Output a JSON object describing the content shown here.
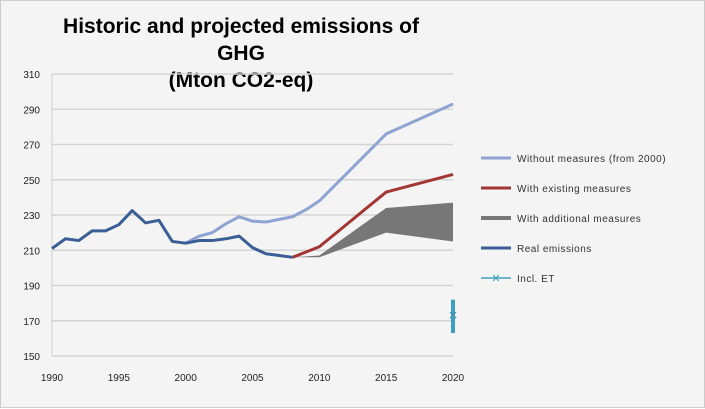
{
  "chart_data": {
    "type": "line",
    "title": "Historic and projected emissions of GHG (Mton CO2-eq)",
    "title_lines": [
      "Historic and projected emissions of GHG",
      "(Mton CO2-eq)"
    ],
    "xlim": [
      1990,
      2020
    ],
    "ylim": [
      150,
      310
    ],
    "x_ticks": [
      1990,
      1995,
      2000,
      2005,
      2010,
      2015,
      2020
    ],
    "y_ticks": [
      150,
      170,
      190,
      210,
      230,
      250,
      270,
      290,
      310
    ],
    "grid": "horizontal",
    "legend_position": "right",
    "series": [
      {
        "name": "Without measures (from 2000)",
        "color": "#8ea3d2",
        "x": [
          2000,
          2001,
          2002,
          2003,
          2004,
          2005,
          2006,
          2007,
          2008,
          2009,
          2010,
          2015,
          2020
        ],
        "y": [
          214,
          218,
          220,
          225,
          229,
          226.5,
          226,
          227.5,
          229,
          233,
          238,
          276,
          293
        ]
      },
      {
        "name": "With existing measures",
        "color": "#a33532",
        "x": [
          2008,
          2010,
          2015,
          2020
        ],
        "y": [
          206,
          212,
          243,
          253
        ]
      },
      {
        "name": "With additional measures",
        "color": "#777777",
        "type": "band",
        "x": [
          2008,
          2010,
          2015,
          2020
        ],
        "upper": [
          206,
          207,
          234,
          237
        ],
        "lower": [
          206,
          206,
          220,
          215
        ]
      },
      {
        "name": "Real emissions",
        "color": "#3a5f96",
        "x": [
          1990,
          1991,
          1992,
          1993,
          1994,
          1995,
          1996,
          1997,
          1998,
          1999,
          2000,
          2001,
          2002,
          2003,
          2004,
          2005,
          2006,
          2007,
          2008
        ],
        "y": [
          211,
          216.5,
          215.5,
          221,
          221,
          224.5,
          232.5,
          225.5,
          227,
          215,
          214,
          215.5,
          215.5,
          216.5,
          218,
          211.5,
          208,
          207,
          206
        ]
      },
      {
        "name": "Incl. ET",
        "color": "#3ea0c0",
        "type": "errorbar",
        "x": [
          2020
        ],
        "y": [
          173
        ],
        "low": [
          163
        ],
        "high": [
          182
        ]
      }
    ]
  }
}
